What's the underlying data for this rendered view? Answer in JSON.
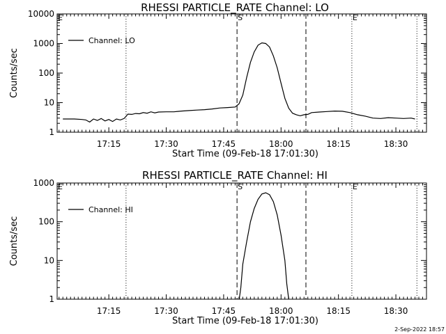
{
  "footer": {
    "text": "2-Sep-2022 18:57"
  },
  "chart_data": [
    {
      "type": "line",
      "title": "RHESSI PARTICLE_RATE Channel: LO",
      "xlabel": "Start Time (09-Feb-18 17:01:30)",
      "ylabel": "Counts/sec",
      "yscale": "log",
      "xlim": [
        "17:01:30",
        "18:38:00"
      ],
      "ylim": [
        1,
        10000
      ],
      "x_ticks": [
        "17:15",
        "17:30",
        "17:45",
        "18:00",
        "18:15",
        "18:30"
      ],
      "y_ticks": [
        "1",
        "10",
        "100",
        "1000",
        "10000"
      ],
      "legend": {
        "position": "top-left",
        "entries": [
          "Channel: LO"
        ]
      },
      "markers": [
        {
          "label": "E",
          "x": "17:01:30",
          "style": "dotted"
        },
        {
          "label": "",
          "x": "17:19:30",
          "style": "dotted"
        },
        {
          "label": "S",
          "x": "17:48:30",
          "style": "dashed"
        },
        {
          "label": "",
          "x": "18:06:30",
          "style": "dashed"
        },
        {
          "label": "E",
          "x": "18:18:30",
          "style": "dotted"
        },
        {
          "label": "",
          "x": "18:35:30",
          "style": "dotted"
        }
      ],
      "series": [
        {
          "name": "Channel: LO",
          "x": [
            "17:03:00",
            "17:06:00",
            "17:08:00",
            "17:09:00",
            "17:10:00",
            "17:11:00",
            "17:12:00",
            "17:13:00",
            "17:14:00",
            "17:15:00",
            "17:16:00",
            "17:17:00",
            "17:18:00",
            "17:19:00",
            "17:20:00",
            "17:21:00",
            "17:22:00",
            "17:23:00",
            "17:24:00",
            "17:25:00",
            "17:26:00",
            "17:27:00",
            "17:28:00",
            "17:30:00",
            "17:32:00",
            "17:34:00",
            "17:36:00",
            "17:38:00",
            "17:40:00",
            "17:42:00",
            "17:44:00",
            "17:46:00",
            "17:48:00",
            "17:49:00",
            "17:50:00",
            "17:51:00",
            "17:52:00",
            "17:53:00",
            "17:54:00",
            "17:55:00",
            "17:56:00",
            "17:57:00",
            "17:58:00",
            "17:59:00",
            "18:00:00",
            "18:01:00",
            "18:02:00",
            "18:03:00",
            "18:04:00",
            "18:05:00",
            "18:06:00",
            "18:07:00",
            "18:08:00",
            "18:10:00",
            "18:12:00",
            "18:14:00",
            "18:16:00",
            "18:18:00",
            "18:20:00",
            "18:22:00",
            "18:24:00",
            "18:26:00",
            "18:28:00",
            "18:30:00",
            "18:32:00",
            "18:34:00",
            "18:35:00"
          ],
          "values": [
            2.8,
            2.8,
            2.7,
            2.6,
            2.2,
            2.8,
            2.5,
            2.9,
            2.4,
            2.7,
            2.3,
            2.8,
            2.6,
            2.9,
            4.1,
            4.0,
            4.3,
            4.2,
            4.6,
            4.4,
            4.9,
            4.5,
            4.8,
            4.9,
            4.9,
            5.2,
            5.4,
            5.6,
            5.8,
            6.1,
            6.6,
            6.8,
            7.1,
            9,
            18,
            70,
            230,
            520,
            880,
            1050,
            1000,
            760,
            380,
            150,
            45,
            14,
            6.5,
            4.4,
            3.9,
            3.6,
            3.9,
            4.0,
            4.6,
            4.8,
            5.0,
            5.2,
            5.1,
            4.6,
            3.9,
            3.5,
            3.0,
            2.9,
            3.1,
            3.0,
            2.9,
            3.0,
            2.8
          ]
        }
      ]
    },
    {
      "type": "line",
      "title": "RHESSI PARTICLE_RATE Channel: HI",
      "xlabel": "Start Time (09-Feb-18 17:01:30)",
      "ylabel": "Counts/sec",
      "yscale": "log",
      "xlim": [
        "17:01:30",
        "18:38:00"
      ],
      "ylim": [
        1,
        1000
      ],
      "x_ticks": [
        "17:15",
        "17:30",
        "17:45",
        "18:00",
        "18:15",
        "18:30"
      ],
      "y_ticks": [
        "1",
        "10",
        "100",
        "1000"
      ],
      "legend": {
        "position": "top-left",
        "entries": [
          "Channel: HI"
        ]
      },
      "markers": [
        {
          "label": "E",
          "x": "17:01:30",
          "style": "dotted"
        },
        {
          "label": "",
          "x": "17:19:30",
          "style": "dotted"
        },
        {
          "label": "S",
          "x": "17:48:30",
          "style": "dashed"
        },
        {
          "label": "",
          "x": "18:06:30",
          "style": "dashed"
        },
        {
          "label": "E",
          "x": "18:18:30",
          "style": "dotted"
        },
        {
          "label": "",
          "x": "18:35:30",
          "style": "dotted"
        }
      ],
      "series": [
        {
          "name": "Channel: HI",
          "x": [
            "17:49:05",
            "17:49:30",
            "17:50:00",
            "17:51:00",
            "17:52:00",
            "17:53:00",
            "17:54:00",
            "17:55:00",
            "17:56:00",
            "17:57:00",
            "17:58:00",
            "17:59:00",
            "18:00:00",
            "18:01:00",
            "18:01:30",
            "18:02:00"
          ],
          "values": [
            1,
            2,
            8,
            30,
            100,
            220,
            380,
            520,
            560,
            500,
            330,
            150,
            45,
            10,
            2.5,
            1
          ]
        }
      ]
    }
  ]
}
